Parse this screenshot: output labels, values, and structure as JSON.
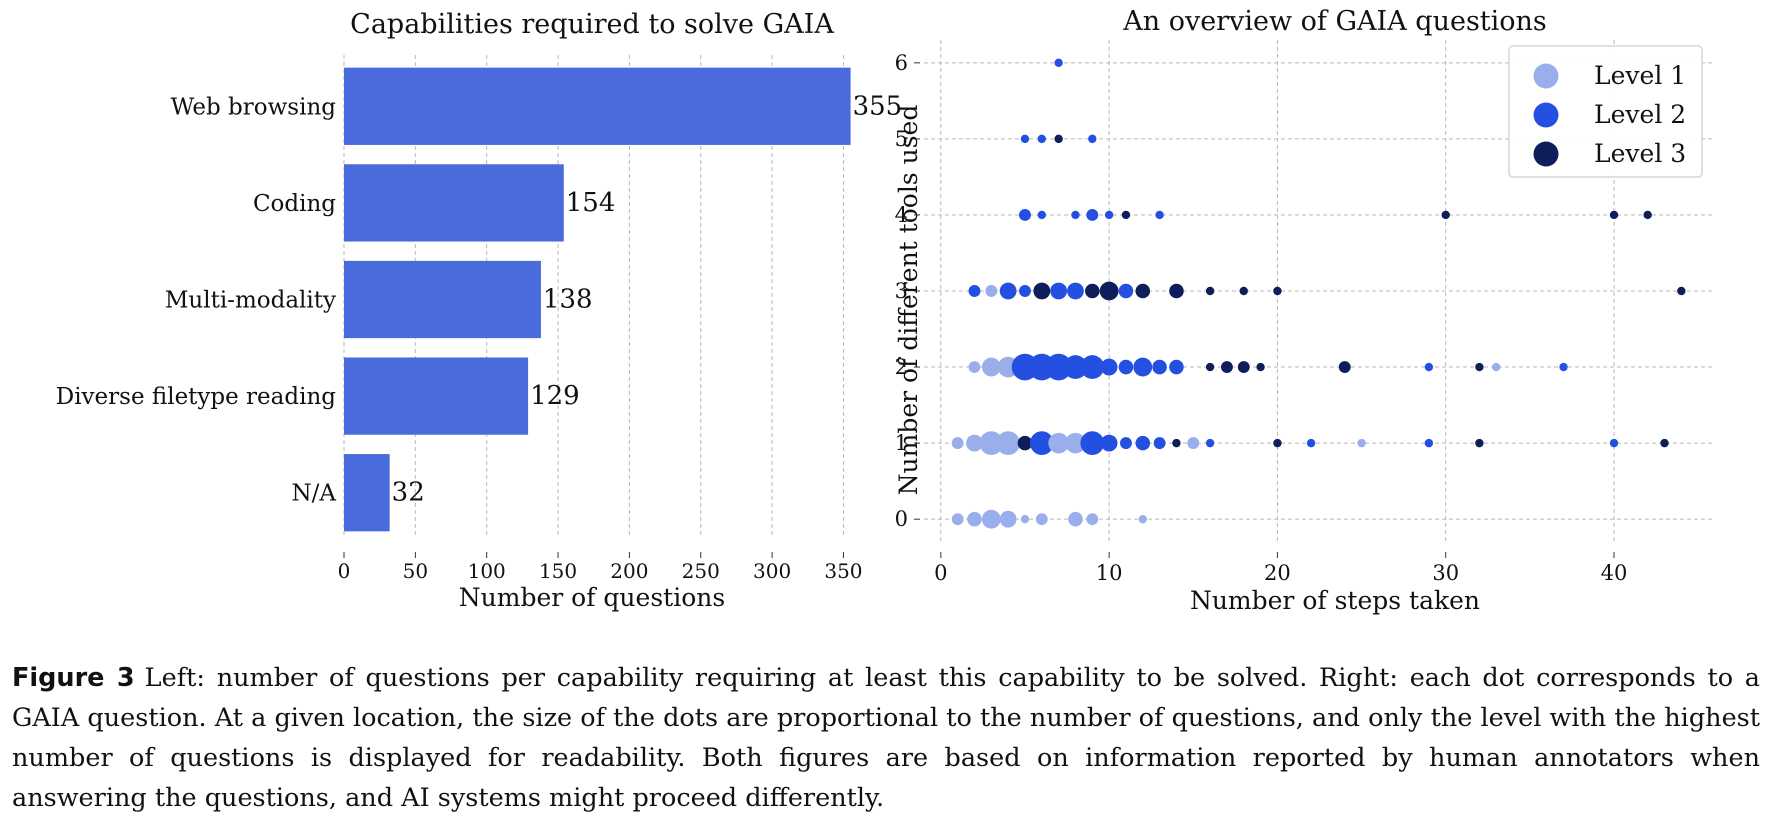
{
  "chart_data": [
    {
      "type": "bar",
      "orientation": "horizontal",
      "title": "Capabilities required to solve GAIA",
      "xlabel": "Number of questions",
      "ylabel": "",
      "categories": [
        "Web browsing",
        "Coding",
        "Multi-modality",
        "Diverse filetype reading",
        "N/A"
      ],
      "values": [
        355,
        154,
        138,
        129,
        32
      ],
      "xticks": [
        "0",
        "50",
        "100",
        "150",
        "200",
        "250",
        "300",
        "350"
      ],
      "xlim": [
        0,
        370
      ],
      "grid": "vertical dashed",
      "color": "#4a6bdc"
    },
    {
      "type": "scatter",
      "title": "An overview of GAIA questions",
      "xlabel": "Number of steps taken",
      "ylabel": "Number of different tools used",
      "xticks": [
        "0",
        "10",
        "20",
        "30",
        "40"
      ],
      "yticks": [
        "0",
        "1",
        "2",
        "3",
        "4",
        "5",
        "6"
      ],
      "xlim": [
        -1,
        46
      ],
      "ylim": [
        -0.3,
        6.3
      ],
      "grid": "dashed",
      "legend_position": "top-right",
      "series": [
        {
          "name": "Level 1",
          "color": "#9aaeec"
        },
        {
          "name": "Level 2",
          "color": "#2350e0"
        },
        {
          "name": "Level 3",
          "color": "#0f1e5a"
        }
      ],
      "points": [
        {
          "x": 1,
          "y": 0,
          "level": 1,
          "count": 2
        },
        {
          "x": 2,
          "y": 0,
          "level": 1,
          "count": 3
        },
        {
          "x": 3,
          "y": 0,
          "level": 1,
          "count": 5
        },
        {
          "x": 4,
          "y": 0,
          "level": 1,
          "count": 4
        },
        {
          "x": 5,
          "y": 0,
          "level": 1,
          "count": 1
        },
        {
          "x": 6,
          "y": 0,
          "level": 1,
          "count": 2
        },
        {
          "x": 8,
          "y": 0,
          "level": 1,
          "count": 3
        },
        {
          "x": 9,
          "y": 0,
          "level": 1,
          "count": 2
        },
        {
          "x": 12,
          "y": 0,
          "level": 1,
          "count": 1
        },
        {
          "x": 1,
          "y": 1,
          "level": 1,
          "count": 2
        },
        {
          "x": 2,
          "y": 1,
          "level": 1,
          "count": 4
        },
        {
          "x": 3,
          "y": 1,
          "level": 1,
          "count": 8
        },
        {
          "x": 4,
          "y": 1,
          "level": 1,
          "count": 8
        },
        {
          "x": 5,
          "y": 1,
          "level": 3,
          "count": 3
        },
        {
          "x": 6,
          "y": 1,
          "level": 2,
          "count": 8
        },
        {
          "x": 7,
          "y": 1,
          "level": 1,
          "count": 6
        },
        {
          "x": 8,
          "y": 1,
          "level": 1,
          "count": 6
        },
        {
          "x": 9,
          "y": 1,
          "level": 2,
          "count": 8
        },
        {
          "x": 10,
          "y": 1,
          "level": 2,
          "count": 4
        },
        {
          "x": 11,
          "y": 1,
          "level": 2,
          "count": 2
        },
        {
          "x": 12,
          "y": 1,
          "level": 2,
          "count": 3
        },
        {
          "x": 13,
          "y": 1,
          "level": 2,
          "count": 2
        },
        {
          "x": 14,
          "y": 1,
          "level": 3,
          "count": 1
        },
        {
          "x": 15,
          "y": 1,
          "level": 1,
          "count": 2
        },
        {
          "x": 16,
          "y": 1,
          "level": 2,
          "count": 1
        },
        {
          "x": 20,
          "y": 1,
          "level": 3,
          "count": 1
        },
        {
          "x": 22,
          "y": 1,
          "level": 2,
          "count": 1
        },
        {
          "x": 25,
          "y": 1,
          "level": 1,
          "count": 1
        },
        {
          "x": 29,
          "y": 1,
          "level": 2,
          "count": 1
        },
        {
          "x": 32,
          "y": 1,
          "level": 3,
          "count": 1
        },
        {
          "x": 40,
          "y": 1,
          "level": 2,
          "count": 1
        },
        {
          "x": 43,
          "y": 1,
          "level": 3,
          "count": 1
        },
        {
          "x": 2,
          "y": 2,
          "level": 1,
          "count": 2
        },
        {
          "x": 3,
          "y": 2,
          "level": 1,
          "count": 5
        },
        {
          "x": 4,
          "y": 2,
          "level": 1,
          "count": 6
        },
        {
          "x": 5,
          "y": 2,
          "level": 2,
          "count": 10
        },
        {
          "x": 6,
          "y": 2,
          "level": 2,
          "count": 10
        },
        {
          "x": 7,
          "y": 2,
          "level": 2,
          "count": 10
        },
        {
          "x": 8,
          "y": 2,
          "level": 2,
          "count": 8
        },
        {
          "x": 9,
          "y": 2,
          "level": 2,
          "count": 8
        },
        {
          "x": 10,
          "y": 2,
          "level": 2,
          "count": 4
        },
        {
          "x": 11,
          "y": 2,
          "level": 2,
          "count": 3
        },
        {
          "x": 12,
          "y": 2,
          "level": 2,
          "count": 5
        },
        {
          "x": 13,
          "y": 2,
          "level": 2,
          "count": 3
        },
        {
          "x": 14,
          "y": 2,
          "level": 2,
          "count": 3
        },
        {
          "x": 16,
          "y": 2,
          "level": 3,
          "count": 1
        },
        {
          "x": 17,
          "y": 2,
          "level": 3,
          "count": 2
        },
        {
          "x": 18,
          "y": 2,
          "level": 3,
          "count": 2
        },
        {
          "x": 19,
          "y": 2,
          "level": 3,
          "count": 1
        },
        {
          "x": 24,
          "y": 2,
          "level": 3,
          "count": 2
        },
        {
          "x": 29,
          "y": 2,
          "level": 2,
          "count": 1
        },
        {
          "x": 32,
          "y": 2,
          "level": 3,
          "count": 1
        },
        {
          "x": 33,
          "y": 2,
          "level": 1,
          "count": 1
        },
        {
          "x": 37,
          "y": 2,
          "level": 2,
          "count": 1
        },
        {
          "x": 2,
          "y": 3,
          "level": 2,
          "count": 2
        },
        {
          "x": 3,
          "y": 3,
          "level": 1,
          "count": 2
        },
        {
          "x": 4,
          "y": 3,
          "level": 2,
          "count": 4
        },
        {
          "x": 5,
          "y": 3,
          "level": 2,
          "count": 2
        },
        {
          "x": 6,
          "y": 3,
          "level": 3,
          "count": 4
        },
        {
          "x": 7,
          "y": 3,
          "level": 2,
          "count": 4
        },
        {
          "x": 8,
          "y": 3,
          "level": 2,
          "count": 4
        },
        {
          "x": 9,
          "y": 3,
          "level": 3,
          "count": 3
        },
        {
          "x": 10,
          "y": 3,
          "level": 3,
          "count": 5
        },
        {
          "x": 11,
          "y": 3,
          "level": 2,
          "count": 3
        },
        {
          "x": 12,
          "y": 3,
          "level": 3,
          "count": 3
        },
        {
          "x": 14,
          "y": 3,
          "level": 3,
          "count": 3
        },
        {
          "x": 16,
          "y": 3,
          "level": 3,
          "count": 1
        },
        {
          "x": 18,
          "y": 3,
          "level": 3,
          "count": 1
        },
        {
          "x": 20,
          "y": 3,
          "level": 3,
          "count": 1
        },
        {
          "x": 44,
          "y": 3,
          "level": 3,
          "count": 1
        },
        {
          "x": 5,
          "y": 4,
          "level": 2,
          "count": 2
        },
        {
          "x": 6,
          "y": 4,
          "level": 2,
          "count": 1
        },
        {
          "x": 8,
          "y": 4,
          "level": 2,
          "count": 1
        },
        {
          "x": 9,
          "y": 4,
          "level": 2,
          "count": 2
        },
        {
          "x": 10,
          "y": 4,
          "level": 2,
          "count": 1
        },
        {
          "x": 11,
          "y": 4,
          "level": 3,
          "count": 1
        },
        {
          "x": 13,
          "y": 4,
          "level": 2,
          "count": 1
        },
        {
          "x": 30,
          "y": 4,
          "level": 3,
          "count": 1
        },
        {
          "x": 40,
          "y": 4,
          "level": 3,
          "count": 1
        },
        {
          "x": 42,
          "y": 4,
          "level": 3,
          "count": 1
        },
        {
          "x": 5,
          "y": 5,
          "level": 2,
          "count": 1
        },
        {
          "x": 6,
          "y": 5,
          "level": 2,
          "count": 1
        },
        {
          "x": 7,
          "y": 5,
          "level": 3,
          "count": 1
        },
        {
          "x": 9,
          "y": 5,
          "level": 2,
          "count": 1
        },
        {
          "x": 7,
          "y": 6,
          "level": 2,
          "count": 1
        }
      ]
    }
  ],
  "caption": {
    "label": "Figure 3",
    "text": "Left: number of questions per capability requiring at least this capability to be solved. Right: each dot corresponds to a GAIA question. At a given location, the size of the dots are proportional to the number of questions, and only the level with the highest number of questions is displayed for readability. Both figures are based on information reported by human annotators when answering the questions, and AI systems might proceed differently."
  }
}
